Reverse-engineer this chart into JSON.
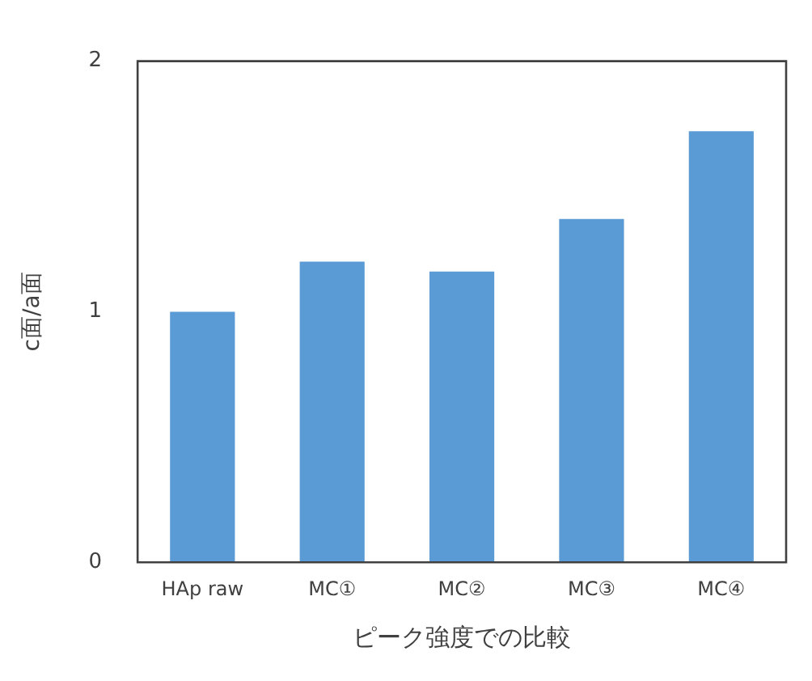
{
  "chart_data": {
    "type": "bar",
    "xlabel": "ピーク強度での比較",
    "ylabel": "c面/a面",
    "categories": [
      "HAp raw",
      "MC①",
      "MC②",
      "MC③",
      "MC④"
    ],
    "values": [
      1.0,
      1.2,
      1.16,
      1.37,
      1.72
    ],
    "color": "#5b9bd5",
    "ylim": [
      0,
      2
    ],
    "yticks": [
      0,
      1,
      2
    ],
    "grid": false,
    "legend": false
  }
}
